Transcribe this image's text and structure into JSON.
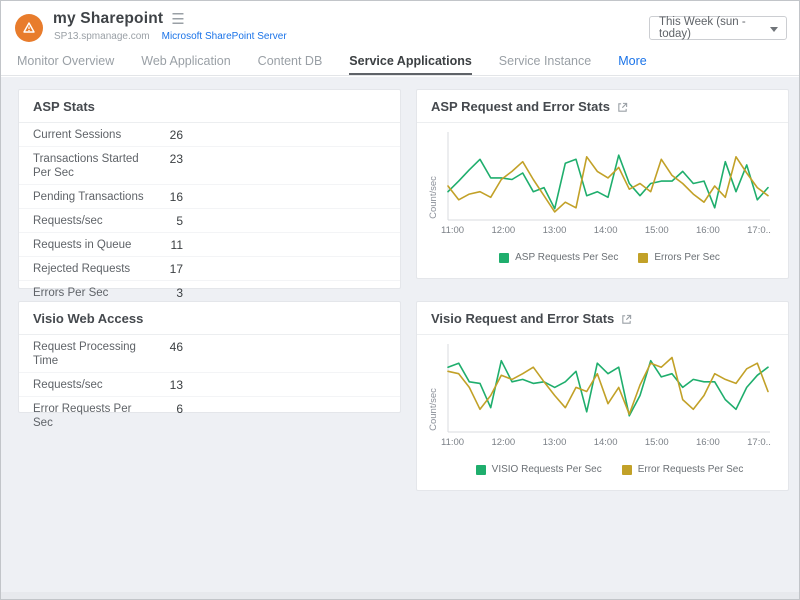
{
  "header": {
    "title": "my Sharepoint",
    "host": "SP13.spmanage.com",
    "server_link": "Microsoft SharePoint Server",
    "time_range": "This Week (sun - today)",
    "accent_orange": "#e87c2c",
    "link_blue": "#1a73e8"
  },
  "tabs": [
    {
      "label": "Monitor Overview",
      "active": false
    },
    {
      "label": "Web Application",
      "active": false
    },
    {
      "label": "Content DB",
      "active": false
    },
    {
      "label": "Service Applications",
      "active": true
    },
    {
      "label": "Service Instance",
      "active": false
    },
    {
      "label": "More",
      "active": false,
      "link": true
    }
  ],
  "panels": {
    "asp_stats": {
      "title": "ASP Stats",
      "rows": [
        {
          "label": "Current Sessions",
          "value": "26"
        },
        {
          "label": "Transactions Started Per Sec",
          "value": "23"
        },
        {
          "label": "Pending Transactions",
          "value": "16"
        },
        {
          "label": "Requests/sec",
          "value": "5"
        },
        {
          "label": "Requests in Queue",
          "value": "11"
        },
        {
          "label": "Rejected Requests",
          "value": "17"
        },
        {
          "label": "Errors Per Sec",
          "value": "3"
        }
      ]
    },
    "visio_web_access": {
      "title": "Visio Web Access",
      "rows": [
        {
          "label": "Request Processing Time",
          "value": "46"
        },
        {
          "label": "Requests/sec",
          "value": "13"
        },
        {
          "label": "Error Requests Per Sec",
          "value": "6"
        }
      ]
    }
  },
  "chart_data": [
    {
      "type": "line",
      "title": "ASP Request and Error Stats",
      "ylabel": "Count/sec",
      "x_ticks": [
        "11:00",
        "12:00",
        "13:00",
        "14:00",
        "15:00",
        "16:00",
        "17:0.."
      ],
      "x_range": [
        "11:00",
        "17:00"
      ],
      "y_tick_labels_visible": false,
      "value_scale": "relative 0-100 (estimated from pixel height; chart shows no numeric y ticks)",
      "grid": false,
      "legend_position": "bottom",
      "series": [
        {
          "name": "ASP Requests Per Sec",
          "color": "#1fae6d",
          "values": [
            35,
            48,
            62,
            75,
            52,
            52,
            50,
            58,
            35,
            40,
            14,
            70,
            75,
            30,
            35,
            28,
            80,
            45,
            30,
            45,
            48,
            48,
            60,
            45,
            48,
            15,
            72,
            35,
            68,
            25,
            40
          ]
        },
        {
          "name": "Errors Per Sec",
          "color": "#c2a128",
          "values": [
            42,
            25,
            32,
            35,
            28,
            50,
            60,
            72,
            50,
            30,
            10,
            22,
            15,
            78,
            60,
            52,
            65,
            38,
            45,
            35,
            75,
            55,
            45,
            32,
            22,
            42,
            28,
            78,
            58,
            40,
            30
          ]
        }
      ]
    },
    {
      "type": "line",
      "title": "Visio Request and Error Stats",
      "ylabel": "Count/sec",
      "x_ticks": [
        "11:00",
        "12:00",
        "13:00",
        "14:00",
        "15:00",
        "16:00",
        "17:0.."
      ],
      "x_range": [
        "11:00",
        "17:00"
      ],
      "y_tick_labels_visible": false,
      "value_scale": "relative 0-100 (estimated from pixel height; chart shows no numeric y ticks)",
      "grid": false,
      "legend_position": "bottom",
      "series": [
        {
          "name": "VISIO Requests Per Sec",
          "color": "#1fae6d",
          "values": [
            80,
            85,
            62,
            60,
            30,
            88,
            62,
            65,
            60,
            62,
            55,
            62,
            75,
            25,
            85,
            72,
            80,
            20,
            45,
            88,
            68,
            72,
            55,
            65,
            62,
            62,
            40,
            28,
            55,
            70,
            80
          ]
        },
        {
          "name": "Error Requests Per Sec",
          "color": "#c2a128",
          "values": [
            75,
            72,
            55,
            28,
            45,
            70,
            65,
            72,
            80,
            62,
            45,
            30,
            55,
            50,
            72,
            35,
            55,
            22,
            58,
            85,
            80,
            92,
            40,
            28,
            45,
            72,
            65,
            60,
            78,
            85,
            50
          ]
        }
      ]
    }
  ]
}
